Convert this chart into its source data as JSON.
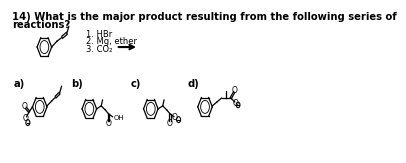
{
  "title_line1": "14) What is the major product resulting from the following series of",
  "title_line2": "reactions?",
  "reagents": [
    "1. HBr",
    "2. Mg, ether",
    "3. CO₂"
  ],
  "background_color": "#ffffff",
  "text_color": "#000000",
  "title_fontsize": 7.2,
  "label_fontsize": 7.2,
  "reagent_fontsize": 6.0,
  "lw": 0.9
}
